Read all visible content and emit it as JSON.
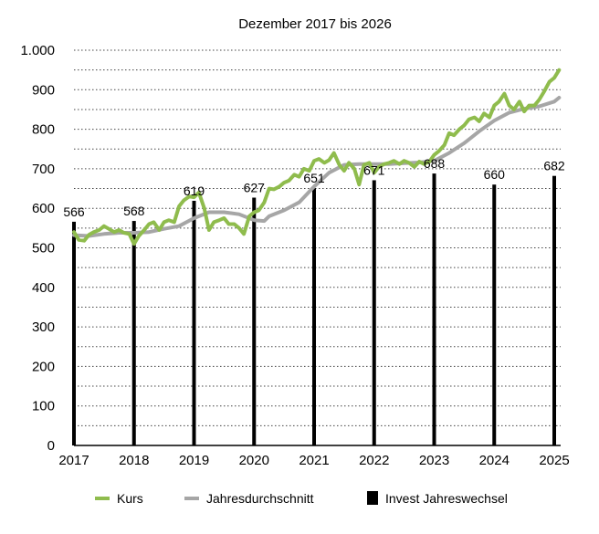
{
  "chart_data": {
    "type": "line",
    "title": "Dezember 2017 bis 2026",
    "xlabel": "",
    "ylabel": "",
    "ylim": [
      0,
      1000
    ],
    "xlim": [
      2017,
      2025.2
    ],
    "y_ticks": [
      0,
      100,
      200,
      300,
      400,
      500,
      600,
      700,
      800,
      900,
      1000
    ],
    "y_tick_labels": [
      "0",
      "100",
      "200",
      "300",
      "400",
      "500",
      "600",
      "700",
      "800",
      "900",
      "1.000"
    ],
    "x_ticks": [
      2017,
      2018,
      2019,
      2020,
      2021,
      2022,
      2023,
      2024,
      2025
    ],
    "x_tick_labels": [
      "2017",
      "2018",
      "2019",
      "2020",
      "2021",
      "2022",
      "2023",
      "2024",
      "2025"
    ],
    "grid": "horizontal dotted",
    "legend_position": "bottom",
    "series": [
      {
        "name": "Kurs",
        "kind": "line",
        "color": "#8fbc4d",
        "x": [
          2017.0,
          2017.08,
          2017.17,
          2017.25,
          2017.33,
          2017.42,
          2017.5,
          2017.58,
          2017.67,
          2017.75,
          2017.83,
          2017.92,
          2018.0,
          2018.08,
          2018.17,
          2018.25,
          2018.33,
          2018.42,
          2018.5,
          2018.58,
          2018.67,
          2018.75,
          2018.83,
          2018.92,
          2019.0,
          2019.08,
          2019.17,
          2019.25,
          2019.33,
          2019.42,
          2019.5,
          2019.58,
          2019.67,
          2019.75,
          2019.83,
          2019.92,
          2020.0,
          2020.08,
          2020.17,
          2020.25,
          2020.33,
          2020.42,
          2020.5,
          2020.58,
          2020.67,
          2020.75,
          2020.83,
          2020.92,
          2021.0,
          2021.08,
          2021.17,
          2021.25,
          2021.33,
          2021.42,
          2021.5,
          2021.58,
          2021.67,
          2021.75,
          2021.83,
          2021.92,
          2022.0,
          2022.08,
          2022.17,
          2022.25,
          2022.33,
          2022.42,
          2022.5,
          2022.58,
          2022.67,
          2022.75,
          2022.83,
          2022.92,
          2023.0,
          2023.08,
          2023.17,
          2023.25,
          2023.33,
          2023.42,
          2023.5,
          2023.58,
          2023.67,
          2023.75,
          2023.83,
          2023.92,
          2024.0,
          2024.08,
          2024.17,
          2024.25,
          2024.33,
          2024.42,
          2024.5,
          2024.58,
          2024.67,
          2024.75,
          2024.83,
          2024.92,
          2025.0,
          2025.08
        ],
        "y": [
          540,
          520,
          518,
          533,
          540,
          545,
          555,
          548,
          540,
          545,
          538,
          535,
          510,
          530,
          545,
          560,
          565,
          545,
          565,
          570,
          565,
          605,
          620,
          630,
          628,
          640,
          600,
          545,
          565,
          570,
          575,
          560,
          560,
          550,
          535,
          580,
          590,
          595,
          615,
          650,
          648,
          655,
          665,
          670,
          685,
          680,
          700,
          695,
          720,
          725,
          715,
          722,
          740,
          710,
          695,
          715,
          700,
          660,
          710,
          715,
          690,
          705,
          712,
          715,
          720,
          712,
          720,
          715,
          705,
          718,
          712,
          718,
          735,
          745,
          760,
          790,
          785,
          800,
          810,
          825,
          830,
          820,
          840,
          830,
          860,
          870,
          890,
          860,
          850,
          870,
          845,
          860,
          860,
          875,
          895,
          920,
          930,
          950
        ]
      },
      {
        "name": "Jahresdurchschnitt",
        "kind": "line",
        "color": "#a6a6a6",
        "x": [
          2017.0,
          2017.25,
          2017.5,
          2017.75,
          2018.0,
          2018.25,
          2018.5,
          2018.75,
          2019.0,
          2019.25,
          2019.5,
          2019.75,
          2020.0,
          2020.17,
          2020.25,
          2020.5,
          2020.75,
          2021.0,
          2021.25,
          2021.5,
          2021.75,
          2022.0,
          2022.25,
          2022.5,
          2022.75,
          2023.0,
          2023.25,
          2023.5,
          2023.75,
          2024.0,
          2024.25,
          2024.5,
          2024.75,
          2025.0,
          2025.08
        ],
        "y": [
          532,
          530,
          535,
          538,
          538,
          540,
          548,
          555,
          575,
          590,
          590,
          585,
          570,
          568,
          580,
          595,
          615,
          655,
          690,
          710,
          712,
          712,
          712,
          714,
          716,
          720,
          740,
          765,
          795,
          822,
          842,
          852,
          858,
          870,
          880
        ]
      },
      {
        "name": "Invest Jahreswechsel",
        "kind": "bar",
        "color": "#000000",
        "x": [
          2017,
          2018,
          2019,
          2020,
          2021,
          2022,
          2023,
          2024,
          2025
        ],
        "values": [
          566,
          568,
          619,
          627,
          651,
          671,
          688,
          660,
          682
        ],
        "labels": [
          "566",
          "568",
          "619",
          "627",
          "651",
          "671",
          "688",
          "660",
          "682"
        ]
      }
    ]
  }
}
